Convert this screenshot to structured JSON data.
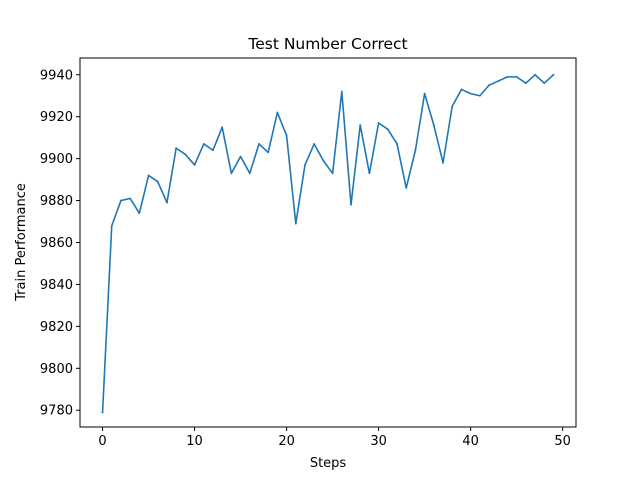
{
  "chart_data": {
    "type": "line",
    "title": "Test Number Correct",
    "xlabel": "Steps",
    "ylabel": "Train Performance",
    "xlim": [
      -2.45,
      51.45
    ],
    "ylim": [
      9772,
      9948
    ],
    "xticks": [
      0,
      10,
      20,
      30,
      40,
      50
    ],
    "yticks": [
      9780,
      9800,
      9820,
      9840,
      9860,
      9880,
      9900,
      9920,
      9940
    ],
    "grid": false,
    "legend": "none",
    "series": [
      {
        "color": "#1f77b4",
        "x": [
          0,
          1,
          2,
          3,
          4,
          5,
          6,
          7,
          8,
          9,
          10,
          11,
          12,
          13,
          14,
          15,
          16,
          17,
          18,
          19,
          20,
          21,
          22,
          23,
          24,
          25,
          26,
          27,
          28,
          29,
          30,
          31,
          32,
          33,
          34,
          35,
          36,
          37,
          38,
          39,
          40,
          41,
          42,
          43,
          44,
          45,
          46,
          47,
          48,
          49
        ],
        "values": [
          9779,
          9868,
          9880,
          9881,
          9874,
          9892,
          9889,
          9879,
          9905,
          9902,
          9897,
          9907,
          9904,
          9915,
          9893,
          9901,
          9893,
          9907,
          9903,
          9922,
          9911,
          9869,
          9897,
          9907,
          9899,
          9893,
          9932,
          9878,
          9916,
          9893,
          9917,
          9914,
          9907,
          9886,
          9904,
          9931,
          9916,
          9898,
          9925,
          9933,
          9931,
          9930,
          9935,
          9937,
          9939,
          9939,
          9936,
          9940,
          9936,
          9940
        ]
      }
    ]
  }
}
